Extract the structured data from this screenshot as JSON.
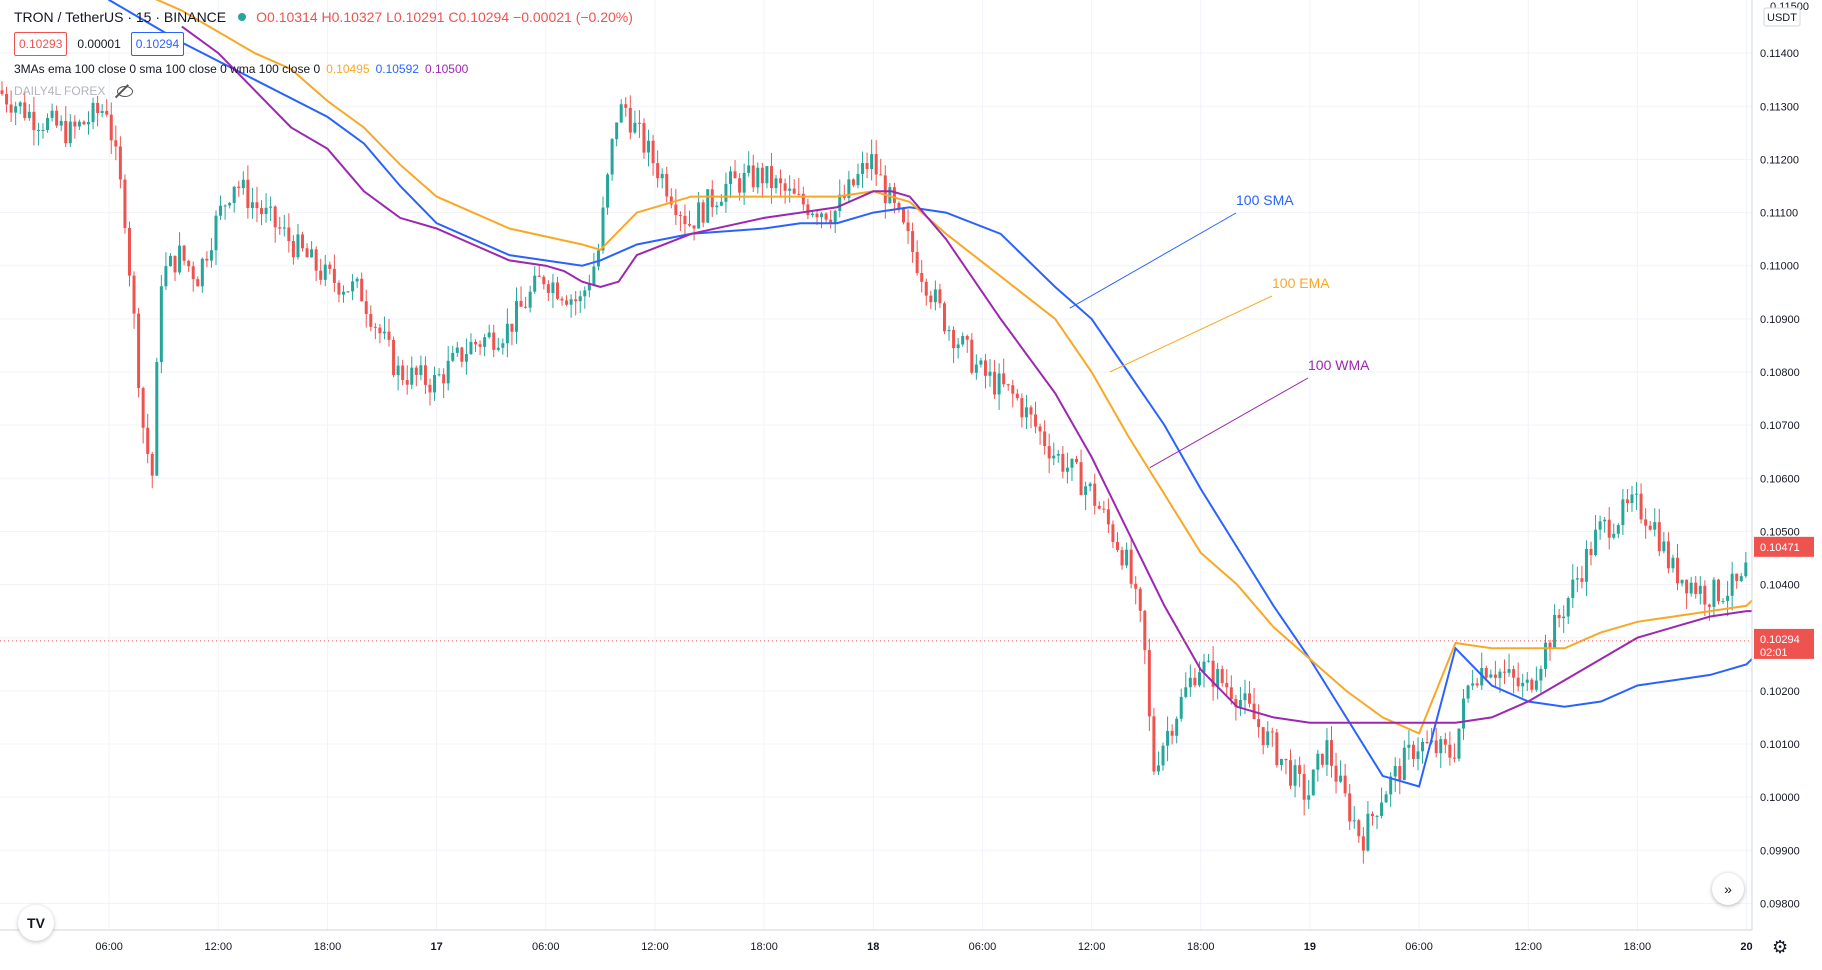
{
  "header": {
    "symbol": "TRON / TetherUS · 15 · BINANCE",
    "ohlc": "O0.10314 H0.10327 L0.10291 C0.10294 −0.00021 (−0.20%)",
    "bid": "0.10293",
    "spread": "0.00001",
    "ask": "0.10294",
    "indicator_label": "3MAs ema 100 close 0 sma 100 close 0 wma 100 close 0",
    "ema_value": "0.10495",
    "sma_value": "0.10592",
    "wma_value": "0.10500",
    "watermark": "DAILY4L FOREX"
  },
  "price_axis": {
    "currency": "USDT",
    "top_partial": "0.11500",
    "current_price_label": "0.10294",
    "countdown": "02:01",
    "last_ma_label": "0.10471"
  },
  "colors": {
    "up": "#26a69a",
    "down": "#ef5350",
    "sma": "#2962ff",
    "ema": "#f9a825",
    "wma": "#9c27b0"
  },
  "icons": {
    "logo": "tradingview-logo-icon",
    "scroll": "double-chevron-right-icon",
    "settings": "gear-icon",
    "visibility": "eye-off-icon"
  },
  "chart_data": {
    "type": "line",
    "title": "TRON / TetherUS · 15 · BINANCE",
    "xlabel": "",
    "ylabel": "",
    "ylim": [
      0.0975,
      0.115
    ],
    "grid": true,
    "yticks": [
      "0.11400",
      "0.11300",
      "0.11200",
      "0.11100",
      "0.11000",
      "0.10900",
      "0.10800",
      "0.10700",
      "0.10600",
      "0.10500",
      "0.10400",
      "0.10300",
      "0.10200",
      "0.10100",
      "0.10000",
      "0.09900",
      "0.09800"
    ],
    "xticks": [
      {
        "label": "06:00",
        "x": 6
      },
      {
        "label": "12:00",
        "x": 12
      },
      {
        "label": "18:00",
        "x": 18
      },
      {
        "label": "17",
        "x": 24
      },
      {
        "label": "06:00",
        "x": 30
      },
      {
        "label": "12:00",
        "x": 36
      },
      {
        "label": "18:00",
        "x": 42
      },
      {
        "label": "18",
        "x": 48
      },
      {
        "label": "06:00",
        "x": 54
      },
      {
        "label": "12:00",
        "x": 60
      },
      {
        "label": "18:00",
        "x": 66
      },
      {
        "label": "19",
        "x": 72
      },
      {
        "label": "06:00",
        "x": 78
      },
      {
        "label": "12:00",
        "x": 84
      },
      {
        "label": "18:00",
        "x": 90
      },
      {
        "label": "20",
        "x": 96
      }
    ],
    "price_path": {
      "x": [
        0,
        2,
        4,
        6,
        7,
        8,
        8.5,
        9,
        10,
        11,
        12,
        13,
        14,
        16,
        18,
        20,
        22,
        24,
        26,
        28,
        30,
        32,
        33,
        34,
        34.5,
        35,
        36,
        38,
        40,
        42,
        44,
        46,
        48,
        50,
        52,
        54,
        56,
        58,
        60,
        62,
        63,
        63.5,
        64,
        66,
        68,
        70,
        72,
        73,
        74,
        75,
        76,
        78,
        80,
        81,
        82,
        84,
        86,
        88,
        90,
        91,
        92,
        94,
        96,
        96.3
      ],
      "y": [
        0.1133,
        0.1128,
        0.1125,
        0.113,
        0.111,
        0.107,
        0.106,
        0.1098,
        0.1102,
        0.1098,
        0.1108,
        0.1116,
        0.1112,
        0.1105,
        0.1098,
        0.1095,
        0.108,
        0.1078,
        0.1085,
        0.1088,
        0.1098,
        0.1093,
        0.1102,
        0.1128,
        0.113,
        0.1126,
        0.112,
        0.1108,
        0.1115,
        0.1117,
        0.1112,
        0.111,
        0.112,
        0.1105,
        0.109,
        0.108,
        0.1075,
        0.1065,
        0.1058,
        0.1045,
        0.103,
        0.1005,
        0.101,
        0.1025,
        0.102,
        0.101,
        0.1,
        0.101,
        0.1,
        0.0992,
        0.1,
        0.101,
        0.1008,
        0.1023,
        0.1025,
        0.102,
        0.1035,
        0.105,
        0.1055,
        0.1052,
        0.1043,
        0.1038,
        0.104,
        0.1048
      ]
    },
    "series": [
      {
        "name": "100 SMA",
        "label": "100 SMA",
        "color": "#2962ff",
        "x": [
          2,
          6,
          10,
          14,
          18,
          20,
          22,
          24,
          28,
          32,
          33,
          35,
          38,
          42,
          44,
          46,
          48,
          50,
          52,
          55,
          58,
          60,
          62,
          64,
          66,
          68,
          70,
          72,
          74,
          76,
          78,
          80,
          82,
          84,
          86,
          88,
          90,
          92,
          94,
          96,
          96.3
        ],
        "y": [
          0.1162,
          0.115,
          0.1142,
          0.1135,
          0.1128,
          0.1123,
          0.1115,
          0.1108,
          0.1102,
          0.11,
          0.1101,
          0.1104,
          0.1106,
          0.1107,
          0.1108,
          0.1108,
          0.111,
          0.1111,
          0.111,
          0.1106,
          0.1096,
          0.109,
          0.108,
          0.107,
          0.1058,
          0.1047,
          0.1036,
          0.1026,
          0.1015,
          0.1004,
          0.1002,
          0.1028,
          0.1021,
          0.1018,
          0.1017,
          0.1018,
          0.1021,
          0.1022,
          0.1023,
          0.1025,
          0.1026
        ]
      },
      {
        "name": "100 EMA",
        "label": "100 EMA",
        "color": "#f9a825",
        "x": [
          2,
          6,
          10,
          14,
          16,
          18,
          20,
          22,
          24,
          28,
          32,
          33,
          35,
          38,
          42,
          44,
          46,
          48,
          50,
          52,
          55,
          58,
          60,
          62,
          64,
          66,
          68,
          70,
          72,
          74,
          76,
          78,
          80,
          82,
          84,
          86,
          88,
          90,
          92,
          94,
          96,
          96.3
        ],
        "y": [
          0.1165,
          0.1154,
          0.1148,
          0.114,
          0.1137,
          0.1131,
          0.1126,
          0.1119,
          0.1113,
          0.1107,
          0.1104,
          0.1103,
          0.111,
          0.1113,
          0.1113,
          0.1113,
          0.1113,
          0.1114,
          0.1112,
          0.1106,
          0.1098,
          0.109,
          0.108,
          0.1068,
          0.1057,
          0.1046,
          0.104,
          0.1032,
          0.1026,
          0.102,
          0.1015,
          0.1012,
          0.1029,
          0.1028,
          0.1028,
          0.1028,
          0.1031,
          0.1033,
          0.1034,
          0.1035,
          0.1036,
          0.1037
        ]
      },
      {
        "name": "100 WMA",
        "label": "100 WMA",
        "color": "#9c27b0",
        "x": [
          10,
          12,
          14,
          16,
          18,
          20,
          22,
          24,
          26,
          28,
          30,
          31,
          32,
          33,
          34,
          35,
          38,
          42,
          44,
          46,
          48,
          49,
          50,
          52,
          55,
          58,
          60,
          62,
          64,
          66,
          68,
          70,
          72,
          74,
          76,
          78,
          80,
          82,
          84,
          86,
          88,
          90,
          92,
          94,
          96,
          96.3
        ],
        "y": [
          0.1145,
          0.114,
          0.1133,
          0.1126,
          0.1122,
          0.1114,
          0.1109,
          0.1107,
          0.1104,
          0.1101,
          0.11,
          0.1099,
          0.1097,
          0.1096,
          0.1097,
          0.1102,
          0.1106,
          0.1109,
          0.111,
          0.1111,
          0.1114,
          0.1114,
          0.1113,
          0.1105,
          0.109,
          0.1076,
          0.1064,
          0.105,
          0.1036,
          0.1024,
          0.1017,
          0.1015,
          0.1014,
          0.1014,
          0.1014,
          0.1014,
          0.1014,
          0.1015,
          0.1018,
          0.1022,
          0.1026,
          0.103,
          0.1032,
          0.1034,
          0.1035,
          0.1035
        ]
      }
    ]
  }
}
